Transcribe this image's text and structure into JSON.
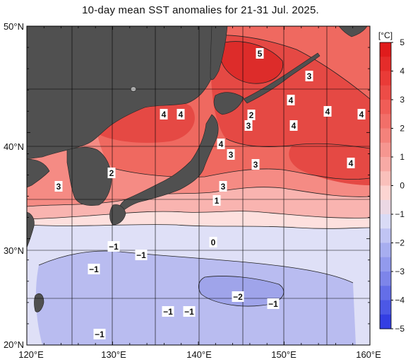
{
  "title": "10-day mean SST anomalies for 21-31 Jul. 2025.",
  "map": {
    "lon_range": [
      120,
      160
    ],
    "lat_range": [
      20,
      50
    ],
    "lon_labels": [
      "120°E",
      "130°E",
      "140°E",
      "150°E",
      "160°E"
    ],
    "lat_labels": [
      "50°N",
      "40°N",
      "30°N",
      "20°N"
    ],
    "land_color": "#505050",
    "ocean_bands": [
      {
        "range": "4~5",
        "color": "#e23a35"
      },
      {
        "range": "3~4",
        "color": "#ef5a52"
      },
      {
        "range": "2~3",
        "color": "#f47f77"
      },
      {
        "range": "1~2",
        "color": "#f9aaa6"
      },
      {
        "range": "0~1",
        "color": "#fde0de"
      },
      {
        "range": "-1~0",
        "color": "#dfe0f7"
      },
      {
        "range": "-2~-1",
        "color": "#b4b7ee"
      }
    ],
    "labels": [
      {
        "text": "5",
        "boxed": true
      },
      {
        "text": "3",
        "boxed": true
      },
      {
        "text": "4",
        "boxed": true
      },
      {
        "text": "4",
        "boxed": true
      },
      {
        "text": "4",
        "boxed": true
      },
      {
        "text": "4",
        "boxed": true
      },
      {
        "text": "4",
        "boxed": true
      },
      {
        "text": "2",
        "boxed": true
      },
      {
        "text": "3",
        "boxed": true
      },
      {
        "text": "4",
        "boxed": true
      },
      {
        "text": "4",
        "boxed": true
      },
      {
        "text": "3",
        "boxed": true
      },
      {
        "text": "3",
        "boxed": true
      },
      {
        "text": "4",
        "boxed": true
      },
      {
        "text": "2",
        "boxed": true
      },
      {
        "text": "3",
        "boxed": true
      },
      {
        "text": "3",
        "boxed": true
      },
      {
        "text": "1",
        "boxed": true
      },
      {
        "text": "0",
        "boxed": true
      },
      {
        "text": "−1",
        "boxed": true
      },
      {
        "text": "−1",
        "boxed": true
      },
      {
        "text": "−1",
        "boxed": true
      },
      {
        "text": "−2",
        "boxed": true
      },
      {
        "text": "−1",
        "boxed": true
      },
      {
        "text": "−1",
        "boxed": true
      },
      {
        "text": "−1",
        "boxed": true
      },
      {
        "text": "−1",
        "boxed": true
      }
    ]
  },
  "colorbar": {
    "unit": "[°C]",
    "ticks": [
      "5",
      "4",
      "3",
      "2",
      "1",
      "0",
      "−1",
      "−2",
      "−3",
      "−4",
      "−5"
    ],
    "colors": [
      "#e01c1c",
      "#ea3b37",
      "#f05d57",
      "#f4827b",
      "#f8aaa5",
      "#fcd5d2",
      "#d9dbf6",
      "#a7aef0",
      "#7d85ea",
      "#4c58e6",
      "#1a24e0"
    ]
  }
}
